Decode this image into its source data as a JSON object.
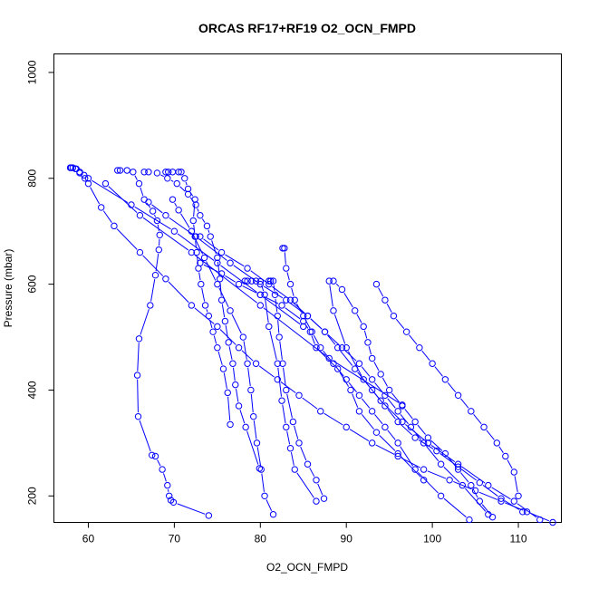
{
  "chart_data": {
    "type": "line",
    "title": "ORCAS RF17+RF19 O2_OCN_FMPD",
    "xlabel": "O2_OCN_FMPD",
    "ylabel": "Pressure (mbar)",
    "xlim": [
      56,
      115
    ],
    "ylim": [
      1035,
      150
    ],
    "y_reversed": true,
    "x_ticks": [
      "60",
      "70",
      "80",
      "90",
      "100",
      "110"
    ],
    "y_ticks": [
      "200",
      "400",
      "600",
      "800",
      "1000"
    ],
    "grid": false,
    "legend": "none",
    "line_color": "#0000ff",
    "marker": "open-circle",
    "series": [
      {
        "x": [
          74.0,
          69.9,
          69.6,
          69.4,
          69.2,
          68.6,
          67.8,
          67.4,
          65.8,
          65.7,
          65.9,
          67.2,
          67.8,
          68.2,
          68.3,
          68.0,
          67.5,
          66.5,
          65.9,
          65.2,
          64.5,
          63.7,
          63.4
        ],
        "y": [
          163,
          188,
          192,
          200,
          220,
          250,
          275,
          277,
          350,
          428,
          497,
          560,
          617,
          665,
          693,
          720,
          738,
          760,
          790,
          812,
          815,
          815,
          815
        ]
      },
      {
        "x": [
          76.5,
          76.2,
          75.7,
          75.0,
          74.5,
          74.0,
          73.6,
          73.1,
          72.8,
          72.6,
          72.4,
          72.2,
          72.4,
          71.6,
          71.2,
          70.8,
          70.5,
          69.8,
          69.3,
          69.0
        ],
        "y": [
          335,
          395,
          440,
          480,
          510,
          540,
          560,
          600,
          630,
          660,
          690,
          720,
          760,
          780,
          800,
          812,
          812,
          812,
          812,
          812
        ]
      },
      {
        "x": [
          79.9,
          78.3,
          77.5,
          77.1,
          76.8,
          76.3,
          75.9,
          75.5,
          75.3,
          75.0,
          74.2,
          73.8,
          73.0,
          72.5,
          71.6,
          70.3,
          69.2,
          68.0,
          67.0,
          66.5
        ],
        "y": [
          252,
          330,
          370,
          410,
          450,
          490,
          530,
          570,
          610,
          650,
          690,
          710,
          730,
          750,
          770,
          790,
          800,
          810,
          812,
          812
        ]
      },
      {
        "x": [
          81.5,
          80.5,
          80.1,
          79.6,
          79.2,
          78.9,
          78.5,
          78.0,
          76.5,
          75.0,
          73.5,
          72.0,
          70.5,
          69.8
        ],
        "y": [
          165,
          200,
          250,
          300,
          350,
          400,
          450,
          500,
          550,
          600,
          650,
          700,
          740,
          760
        ]
      },
      {
        "x": [
          86.5,
          84.0,
          83.5,
          83.0,
          82.5,
          82.0,
          81.0,
          80.5,
          80.0,
          79.5,
          79.0,
          78.5,
          78.2
        ],
        "y": [
          190,
          250,
          290,
          330,
          380,
          450,
          520,
          580,
          605,
          606,
          606,
          606,
          606
        ]
      },
      {
        "x": [
          87.4,
          86.5,
          85.5,
          84.5,
          83.8,
          83.0,
          82.6,
          82.2,
          82.0,
          81.7,
          81.5,
          81.2,
          81.0
        ],
        "y": [
          195,
          230,
          260,
          300,
          340,
          400,
          450,
          500,
          540,
          580,
          606,
          606,
          606
        ]
      },
      {
        "x": [
          104.3,
          101.0,
          98.0,
          96.0,
          94.5,
          93.0,
          91.5,
          90.0,
          88.5,
          87.0,
          86.0,
          85.0,
          84.0,
          83.5,
          83.0,
          82.8,
          82.6
        ],
        "y": [
          155,
          200,
          250,
          300,
          330,
          360,
          390,
          420,
          450,
          480,
          510,
          540,
          570,
          600,
          630,
          668,
          668
        ]
      },
      {
        "x": [
          99.0,
          96.0,
          93.5,
          91.5,
          90.5,
          89.0,
          86.5,
          85.8,
          85.0,
          82.5,
          80.0,
          77.5,
          75.5,
          73.0
        ],
        "y": [
          230,
          280,
          320,
          360,
          400,
          440,
          480,
          510,
          530,
          560,
          580,
          600,
          620,
          640
        ]
      },
      {
        "x": [
          106.5,
          103.5,
          101.0,
          99.0,
          97.5,
          96.0,
          94.5,
          93.0,
          91.5,
          89.5,
          87.5,
          85.5,
          83.5,
          81.0,
          78.5,
          75.5,
          73.0
        ],
        "y": [
          165,
          220,
          260,
          300,
          330,
          360,
          390,
          420,
          450,
          480,
          510,
          540,
          570,
          600,
          630,
          660,
          690
        ]
      },
      {
        "x": [
          110.5,
          108.0,
          105.5,
          103.0,
          100.5,
          98.0,
          96.0,
          94.5,
          93.0,
          91.0,
          89.0,
          87.5,
          85.5,
          83.0,
          80.0,
          76.5,
          72.5,
          69.0,
          67.0
        ],
        "y": [
          170,
          195,
          225,
          255,
          285,
          310,
          340,
          370,
          400,
          440,
          480,
          510,
          540,
          570,
          600,
          640,
          690,
          730,
          755
        ]
      },
      {
        "x": [
          112.5,
          109.5,
          106.5,
          103.0,
          99.5,
          96.5,
          94.0,
          92.0,
          90.0,
          88.5,
          88.0
        ],
        "y": [
          155,
          190,
          220,
          260,
          300,
          340,
          380,
          420,
          480,
          550,
          606
        ]
      },
      {
        "x": [
          107.0,
          105.5,
          104.5,
          103.0,
          101.5,
          99.5,
          98.0,
          96.5,
          95.0,
          94.0,
          93.0,
          92.5,
          92.0,
          91.0,
          89.5,
          88.5
        ],
        "y": [
          160,
          190,
          220,
          250,
          280,
          310,
          340,
          370,
          400,
          430,
          460,
          490,
          520,
          550,
          590,
          606
        ]
      },
      {
        "x": [
          110.0,
          109.5,
          108.5,
          107.5,
          106.0,
          104.5,
          103.0,
          101.5,
          100.0,
          98.5,
          97.0,
          95.5,
          94.5,
          93.5
        ],
        "y": [
          200,
          245,
          275,
          300,
          330,
          360,
          390,
          420,
          450,
          480,
          510,
          540,
          570,
          600
        ]
      },
      {
        "x": [
          114.0,
          111.0,
          108.0,
          105.0,
          102.0,
          99.0,
          96.0,
          93.0,
          90.0,
          87.0,
          84.5,
          82.0,
          79.5,
          77.5,
          75.0,
          72.0,
          69.0,
          66.0,
          63.0,
          61.5,
          60.0,
          59.6,
          59.0,
          58.6,
          58.0
        ],
        "y": [
          150,
          170,
          190,
          210,
          230,
          250,
          275,
          300,
          330,
          360,
          390,
          420,
          450,
          480,
          520,
          560,
          610,
          660,
          710,
          745,
          790,
          800,
          810,
          818,
          820
        ]
      },
      {
        "x": [
          85.0,
          80.0,
          75.0,
          70.0,
          65.0,
          60.0,
          59.5,
          59.0,
          58.5,
          58.2,
          57.9
        ],
        "y": [
          520,
          580,
          640,
          700,
          750,
          800,
          806,
          812,
          818,
          820,
          820
        ]
      },
      {
        "x": [
          96.5,
          88.0,
          80.0,
          72.0,
          66.0,
          62.0
        ],
        "y": [
          372,
          460,
          560,
          660,
          730,
          790
        ]
      }
    ]
  }
}
